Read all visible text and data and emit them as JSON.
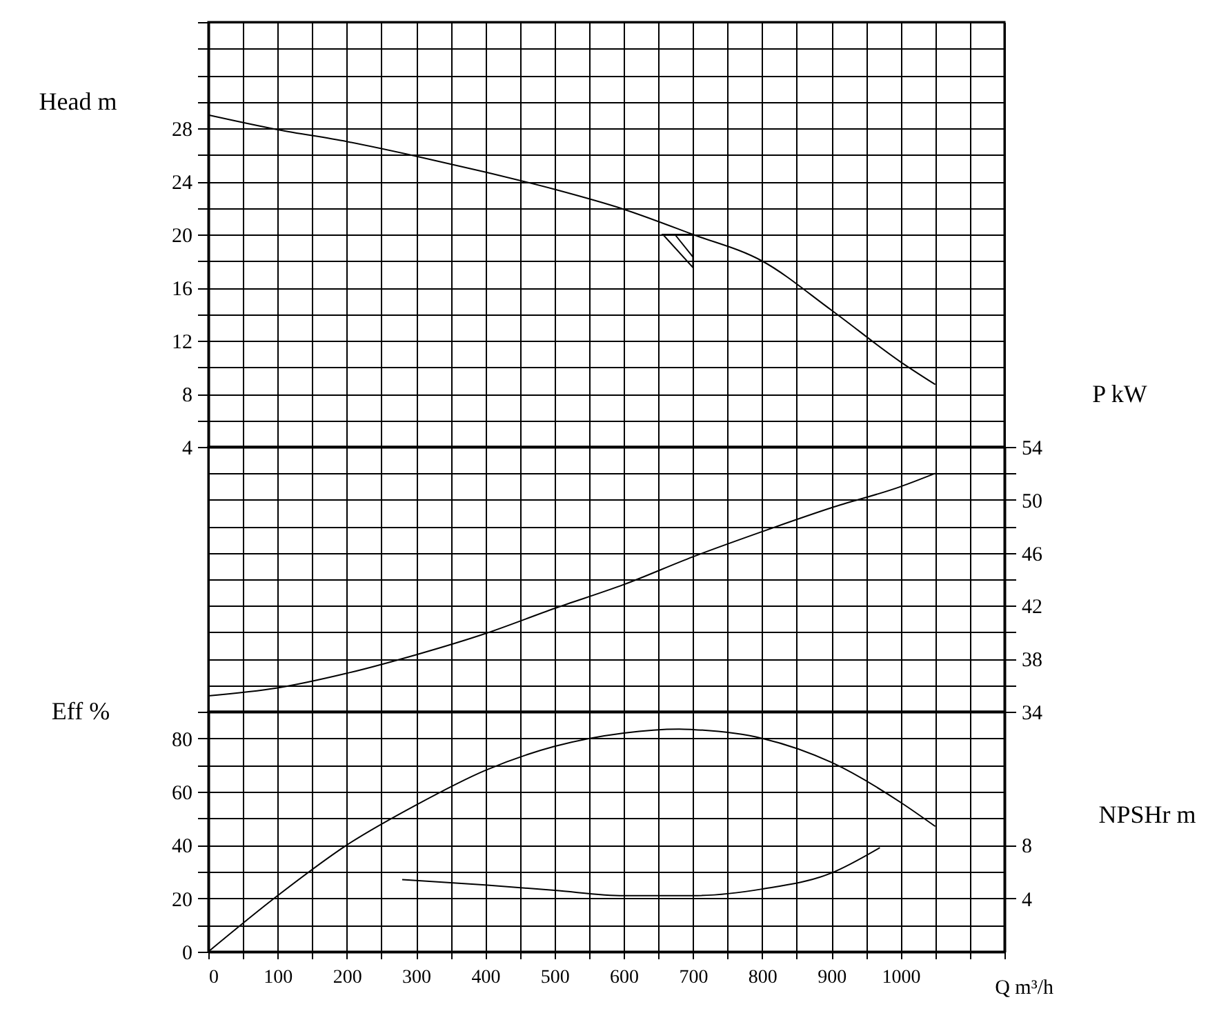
{
  "chart_data": [
    {
      "type": "line",
      "ylabel": "Head m",
      "xlim": [
        0,
        1150
      ],
      "xticks": [
        0,
        {
          "value": 50,
          "label": null
        },
        100,
        {
          "value": 150,
          "label": null
        },
        200,
        {
          "value": 250,
          "label": null
        },
        300,
        {
          "value": 350,
          "label": null
        },
        400,
        {
          "value": 450,
          "label": null
        },
        500,
        {
          "value": 550,
          "label": null
        },
        600,
        {
          "value": 650,
          "label": null
        },
        700,
        {
          "value": 750,
          "label": null
        },
        800,
        {
          "value": 850,
          "label": null
        },
        900,
        {
          "value": 950,
          "label": null
        },
        1000,
        {
          "value": 1050,
          "label": null
        },
        {
          "value": 1100,
          "label": null
        },
        {
          "value": 1150,
          "label": null
        }
      ],
      "ylim": [
        4,
        36
      ],
      "yticks": [
        4,
        {
          "value": 6,
          "label": null
        },
        8,
        {
          "value": 10,
          "label": null
        },
        12,
        {
          "value": 14,
          "label": null
        },
        16,
        {
          "value": 18,
          "label": null
        },
        20,
        {
          "value": 22,
          "label": null
        },
        24,
        {
          "value": 26,
          "label": null
        },
        28,
        {
          "value": 30,
          "label": null
        },
        {
          "value": 32,
          "label": null
        },
        {
          "value": 34,
          "label": null
        },
        {
          "value": 36,
          "label": null
        }
      ],
      "grid": true,
      "tick_labels": "y",
      "x": [
        0,
        100,
        200,
        300,
        400,
        500,
        600,
        700,
        800,
        900,
        1000,
        1050
      ],
      "series": [
        {
          "color": "#000000",
          "values": [
            29,
            27.9,
            27,
            25.9,
            24.7,
            23.4,
            21.9,
            20,
            18,
            14.3,
            10.4,
            8.7
          ]
        }
      ]
    },
    {
      "type": "line",
      "y2label": "P kW",
      "xlim": [
        0,
        1150
      ],
      "xticks": [
        0,
        {
          "value": 50,
          "label": null
        },
        100,
        {
          "value": 150,
          "label": null
        },
        200,
        {
          "value": 250,
          "label": null
        },
        300,
        {
          "value": 350,
          "label": null
        },
        400,
        {
          "value": 450,
          "label": null
        },
        500,
        {
          "value": 550,
          "label": null
        },
        600,
        {
          "value": 650,
          "label": null
        },
        700,
        {
          "value": 750,
          "label": null
        },
        800,
        {
          "value": 850,
          "label": null
        },
        900,
        {
          "value": 950,
          "label": null
        },
        1000,
        {
          "value": 1050,
          "label": null
        },
        {
          "value": 1100,
          "label": null
        },
        {
          "value": 1150,
          "label": null
        }
      ],
      "y2lim": [
        34,
        54
      ],
      "y2ticks": [
        34,
        {
          "value": 36,
          "label": null
        },
        38,
        {
          "value": 40,
          "label": null
        },
        42,
        {
          "value": 44,
          "label": null
        },
        46,
        {
          "value": 48,
          "label": null
        },
        50,
        {
          "value": 52,
          "label": null
        },
        54
      ],
      "grid": true,
      "tick_labels": "y",
      "x": [
        0,
        100,
        200,
        300,
        400,
        500,
        600,
        700,
        800,
        900,
        1000,
        1050
      ],
      "series": [
        {
          "color": "#000000",
          "axis": "y2",
          "values": [
            35.2,
            35.8,
            36.9,
            38.3,
            39.9,
            41.8,
            43.6,
            45.7,
            47.6,
            49.4,
            51,
            52
          ]
        }
      ]
    },
    {
      "type": "line",
      "ylabel": "Eff %",
      "y2label": "NPSHr m",
      "xlabel": "Q m³/h",
      "xlim": [
        0,
        1150
      ],
      "xticks": [
        0,
        {
          "value": 50,
          "label": null
        },
        100,
        {
          "value": 150,
          "label": null
        },
        200,
        {
          "value": 250,
          "label": null
        },
        300,
        {
          "value": 350,
          "label": null
        },
        400,
        {
          "value": 450,
          "label": null
        },
        500,
        {
          "value": 550,
          "label": null
        },
        600,
        {
          "value": 650,
          "label": null
        },
        700,
        {
          "value": 750,
          "label": null
        },
        800,
        {
          "value": 850,
          "label": null
        },
        900,
        {
          "value": 950,
          "label": null
        },
        1000,
        {
          "value": 1050,
          "label": null
        },
        {
          "value": 1100,
          "label": null
        },
        {
          "value": 1150,
          "label": null
        }
      ],
      "ylim": [
        0,
        90
      ],
      "yticks": [
        0,
        {
          "value": 10,
          "label": null
        },
        20,
        {
          "value": 30,
          "label": null
        },
        40,
        {
          "value": 50,
          "label": null
        },
        60,
        {
          "value": 70,
          "label": null
        },
        80,
        {
          "value": 90,
          "label": null
        }
      ],
      "y2lim": [
        0,
        18
      ],
      "y2ticks": [
        4,
        8
      ],
      "grid": true,
      "series": [
        {
          "color": "#000000",
          "x": [
            0,
            100,
            200,
            300,
            400,
            500,
            600,
            680,
            700,
            800,
            900,
            1000,
            1050
          ],
          "values": [
            0,
            21,
            40,
            55,
            68,
            77,
            82,
            83.5,
            83.3,
            80,
            71,
            56,
            47
          ]
        },
        {
          "color": "#000000",
          "axis": "y2",
          "x": [
            280,
            400,
            500,
            600,
            700,
            800,
            900,
            970
          ],
          "values": [
            5.4,
            5,
            4.6,
            4.2,
            4.2,
            4.7,
            5.9,
            7.8
          ]
        }
      ]
    }
  ]
}
